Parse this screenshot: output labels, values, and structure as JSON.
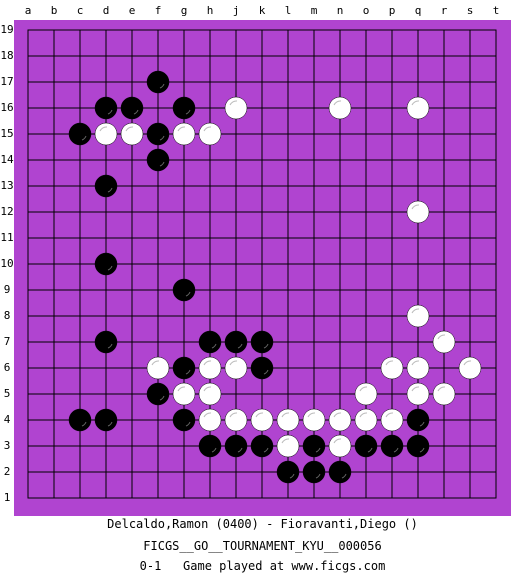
{
  "board": {
    "size": 19,
    "background_color": "#b044d0",
    "line_color": "#000000",
    "column_labels": [
      "a",
      "b",
      "c",
      "d",
      "e",
      "f",
      "g",
      "h",
      "j",
      "k",
      "l",
      "m",
      "n",
      "o",
      "p",
      "q",
      "r",
      "s",
      "t"
    ],
    "row_labels": [
      "19",
      "18",
      "17",
      "16",
      "15",
      "14",
      "13",
      "12",
      "11",
      "10",
      "9",
      "8",
      "7",
      "6",
      "5",
      "4",
      "3",
      "2",
      "1"
    ]
  },
  "stones": {
    "black": [
      "f17",
      "d16",
      "e16",
      "g16",
      "c15",
      "f15",
      "f14",
      "d13",
      "d10",
      "g9",
      "d7",
      "h7",
      "j7",
      "k7",
      "g6",
      "k6",
      "f5",
      "c4",
      "d4",
      "g4",
      "q4",
      "h3",
      "j3",
      "k3",
      "m3",
      "o3",
      "p3",
      "q3",
      "l2",
      "m2",
      "n2"
    ],
    "white": [
      "j16",
      "n16",
      "q16",
      "d15",
      "e15",
      "g15",
      "h15",
      "q12",
      "q8",
      "r7",
      "f6",
      "h6",
      "j6",
      "p6",
      "q6",
      "s6",
      "g5",
      "h5",
      "o5",
      "q5",
      "r5",
      "h4",
      "j4",
      "k4",
      "l4",
      "m4",
      "n4",
      "o4",
      "p4",
      "l3",
      "n3"
    ]
  },
  "footer": {
    "players": "Delcaldo,Ramon (0400) - Fioravanti,Diego ()",
    "event": "FICGS__GO__TOURNAMENT_KYU__000056",
    "result_line": "0-1   Game played at www.ficgs.com"
  }
}
